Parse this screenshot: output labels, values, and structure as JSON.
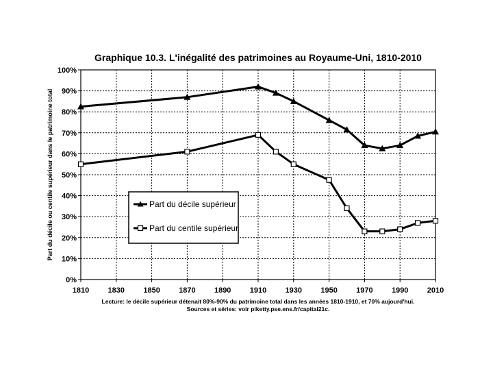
{
  "chart_data": {
    "type": "line",
    "title": "Graphique 10.3. L'inégalité des patrimoines au Royaume-Uni, 1810-2010",
    "ylabel": "Part du décile ou centile supérieur dans le patrimoine total",
    "xlabel": "",
    "xlim": [
      1810,
      2010
    ],
    "ylim": [
      0,
      100
    ],
    "x_ticks": [
      "1810",
      "1830",
      "1850",
      "1870",
      "1890",
      "1910",
      "1930",
      "1950",
      "1970",
      "1990",
      "2010"
    ],
    "y_ticks": [
      "0%",
      "10%",
      "20%",
      "30%",
      "40%",
      "50%",
      "60%",
      "70%",
      "80%",
      "90%",
      "100%"
    ],
    "grid": true,
    "legend_position": "middle-left",
    "series": [
      {
        "name": "Part du décile supérieur",
        "marker": "filled-triangle",
        "x": [
          1810,
          1870,
          1910,
          1920,
          1930,
          1950,
          1960,
          1970,
          1980,
          1990,
          2000,
          2010
        ],
        "values": [
          82.5,
          87,
          92,
          89,
          85,
          76,
          71.5,
          64,
          62.5,
          64,
          68.5,
          70.5
        ]
      },
      {
        "name": "Part du centile supérieur",
        "marker": "open-square",
        "x": [
          1810,
          1870,
          1910,
          1920,
          1930,
          1950,
          1960,
          1970,
          1980,
          1990,
          2000,
          2010
        ],
        "values": [
          55,
          61,
          69,
          61,
          55,
          47.5,
          34,
          23,
          23,
          24,
          27,
          28
        ]
      }
    ],
    "annotations": [
      "Lecture: le décile supérieur détenait 80%-90% du patrimoine total dans les années 1810-1910, et 70% aujourd'hui.",
      "Sources et séries: voir piketty.pse.ens.fr/capital21c."
    ]
  }
}
